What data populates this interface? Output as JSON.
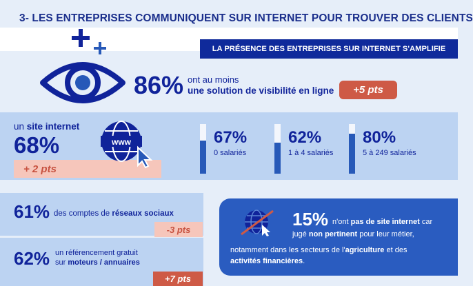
{
  "title": "3- LES ENTREPRISES COMMUNIQUENT SUR INTERNET POUR TROUVER DES CLIENTS",
  "banner": "LA PRÉSENCE DES ENTREPRISES SUR INTERNET S'AMPLIFIE",
  "visibility": {
    "pct": "86%",
    "line1": "ont au moins",
    "line2": "une solution de visibilité en ligne",
    "delta": "+5 pts"
  },
  "website": {
    "label_prefix": "un ",
    "label_bold": "site internet",
    "pct": "68%",
    "delta": "+ 2 pts",
    "breakdown": [
      {
        "pct": "67%",
        "label": "0 salariés",
        "value": 67
      },
      {
        "pct": "62%",
        "label": "1 à 4 salariés",
        "value": 62
      },
      {
        "pct": "80%",
        "label": "5 à 249 salariés",
        "value": 80
      }
    ]
  },
  "social": {
    "pct": "61%",
    "text": "des comptes de",
    "text_bold": "réseaux sociaux",
    "delta": "-3 pts"
  },
  "referencing": {
    "pct": "62%",
    "line1": "un référencement gratuit",
    "line2_prefix": "sur ",
    "line2_bold": "moteurs / annuaires",
    "delta": "+7 pts"
  },
  "no_site": {
    "pct": "15%",
    "t1_prefix": "n'ont ",
    "t1_bold": "pas de site internet",
    "t1_suffix": " car",
    "t2_prefix": "jugé ",
    "t2_bold": "non pertinent",
    "t2_suffix": " pour leur métier,",
    "t3_prefix": "notamment dans les secteurs de l'",
    "t3_bold": "agriculture",
    "t3_suffix": " et des",
    "t4_bold": "activités financières",
    "t4_suffix": "."
  },
  "icons": {
    "plus": "plus-icon",
    "eye": "eye-icon",
    "globe": "globe-www-icon",
    "globe_crossed": "globe-crossed-icon"
  },
  "colors": {
    "navy": "#10239a",
    "accent_red": "#ce5a46",
    "light_red": "#f6c6bb",
    "band": "#bcd3f2",
    "blue": "#2a5cc0"
  }
}
